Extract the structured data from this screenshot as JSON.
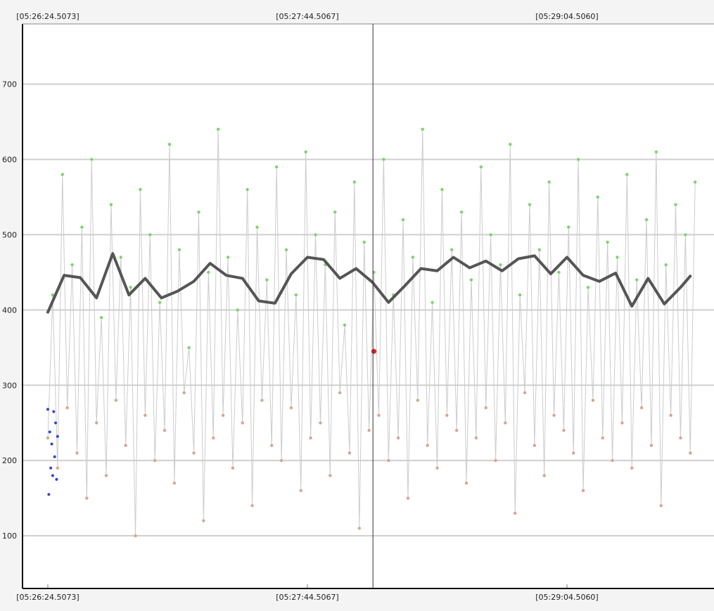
{
  "chart_data": {
    "type": "scatter",
    "title": "",
    "xlabel": "",
    "ylabel": "",
    "x_tick_labels": [
      "[05:26:24.5073]",
      "[05:27:44.5067]",
      "[05:29:04.5060]"
    ],
    "y_ticks": [
      100,
      200,
      300,
      400,
      500,
      600,
      700
    ],
    "y_tick_labels": [
      "100",
      "200",
      "300",
      "400",
      "500",
      "600",
      "700"
    ],
    "ylim": [
      30,
      780
    ],
    "grid": true,
    "legend": "none",
    "cursor_time": "[05:28:02]",
    "series": [
      {
        "role": "lower-cluster",
        "color": "#d9a48f",
        "x_seconds": [
          0,
          3,
          6,
          9,
          12,
          15,
          18,
          21,
          24,
          27,
          30,
          33,
          36,
          39,
          42,
          45,
          48,
          51,
          54,
          57,
          60,
          63,
          66,
          69,
          72,
          75,
          78,
          81,
          84,
          87,
          90,
          93,
          96,
          99,
          102,
          105,
          108,
          111,
          114,
          117,
          120,
          123,
          126,
          129,
          132,
          135,
          138,
          141,
          144,
          147,
          150,
          153,
          156,
          159,
          162,
          165,
          168,
          171,
          174,
          177,
          180,
          183,
          186,
          189,
          192,
          195,
          198
        ],
        "values": [
          230,
          190,
          270,
          210,
          150,
          250,
          180,
          280,
          220,
          100,
          260,
          200,
          240,
          170,
          290,
          210,
          120,
          230,
          260,
          190,
          250,
          140,
          280,
          220,
          200,
          270,
          160,
          230,
          250,
          180,
          290,
          210,
          110,
          240,
          260,
          200,
          230,
          150,
          280,
          220,
          190,
          260,
          240,
          170,
          230,
          270,
          200,
          250,
          130,
          290,
          220,
          180,
          260,
          240,
          210,
          160,
          280,
          230,
          200,
          250,
          190,
          270,
          220,
          140,
          260,
          230,
          210
        ]
      },
      {
        "role": "upper-cluster",
        "color": "#79d66a",
        "x_seconds": [
          0,
          3,
          6,
          9,
          12,
          15,
          18,
          21,
          24,
          27,
          30,
          33,
          36,
          39,
          42,
          45,
          48,
          51,
          54,
          57,
          60,
          63,
          66,
          69,
          72,
          75,
          78,
          81,
          84,
          87,
          90,
          93,
          96,
          99,
          102,
          105,
          108,
          111,
          114,
          117,
          120,
          123,
          126,
          129,
          132,
          135,
          138,
          141,
          144,
          147,
          150,
          153,
          156,
          159,
          162,
          165,
          168,
          171,
          174,
          177,
          180,
          183,
          186,
          189,
          192,
          195,
          198
        ],
        "values": [
          420,
          580,
          460,
          510,
          600,
          390,
          540,
          470,
          430,
          560,
          500,
          410,
          620,
          480,
          350,
          530,
          450,
          640,
          470,
          400,
          560,
          510,
          440,
          590,
          480,
          420,
          610,
          500,
          460,
          530,
          380,
          570,
          490,
          450,
          600,
          420,
          520,
          470,
          640,
          410,
          560,
          480,
          530,
          440,
          590,
          500,
          460,
          620,
          420,
          540,
          480,
          570,
          450,
          510,
          600,
          430,
          550,
          490,
          470,
          580,
          440,
          520,
          610,
          460,
          540,
          500,
          570
        ]
      },
      {
        "role": "moving-average",
        "color": "#555555",
        "x_seconds": [
          0,
          5,
          10,
          15,
          20,
          25,
          30,
          35,
          40,
          45,
          50,
          55,
          60,
          65,
          70,
          75,
          80,
          85,
          90,
          95,
          100,
          105,
          110,
          115,
          120,
          125,
          130,
          135,
          140,
          145,
          150,
          155,
          160,
          165,
          170,
          175,
          180,
          185,
          190,
          195,
          198
        ],
        "values": [
          397,
          446,
          443,
          416,
          475,
          420,
          442,
          416,
          425,
          438,
          462,
          446,
          442,
          412,
          409,
          448,
          470,
          467,
          442,
          455,
          437,
          410,
          432,
          455,
          452,
          470,
          456,
          465,
          452,
          468,
          472,
          448,
          470,
          446,
          438,
          449,
          405,
          442,
          408,
          430,
          445
        ]
      },
      {
        "role": "start-cluster",
        "color": "#3344cc",
        "x_seconds": [
          0,
          0.3,
          0.6,
          0.9,
          1.2,
          1.5,
          1.8,
          2.1,
          2.4,
          2.7,
          3.0
        ],
        "values": [
          268,
          155,
          238,
          190,
          222,
          180,
          265,
          205,
          250,
          175,
          232
        ]
      },
      {
        "role": "highlight",
        "color": "#e02020",
        "x_seconds": [
          100.5
        ],
        "values": [
          345
        ]
      }
    ]
  }
}
